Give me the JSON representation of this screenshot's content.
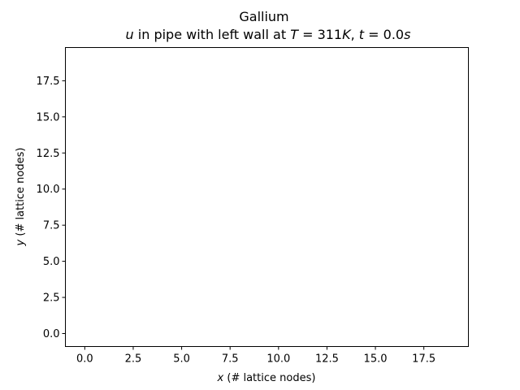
{
  "chart_data": {
    "type": "heatmap",
    "title": "Gallium",
    "subtitle": {
      "var": "u",
      "text_mid": " in pipe with left wall at ",
      "T_sym": "T",
      "T_val": " = 311",
      "T_unit": "K",
      "comma": ", ",
      "t_sym": "t",
      "t_val": " = 0.0",
      "t_unit": "s"
    },
    "xlabel": {
      "var": "x",
      "rest": " (# lattice nodes)"
    },
    "ylabel": {
      "var": "y",
      "rest": " (# lattice nodes)"
    },
    "xlim": [
      -1,
      19.8
    ],
    "ylim": [
      -0.9,
      19.8
    ],
    "xticks": [
      "0.0",
      "2.5",
      "5.0",
      "7.5",
      "10.0",
      "12.5",
      "15.0",
      "17.5"
    ],
    "yticks": [
      "0.0",
      "2.5",
      "5.0",
      "7.5",
      "10.0",
      "12.5",
      "15.0",
      "17.5"
    ],
    "values": [],
    "grid": false
  }
}
